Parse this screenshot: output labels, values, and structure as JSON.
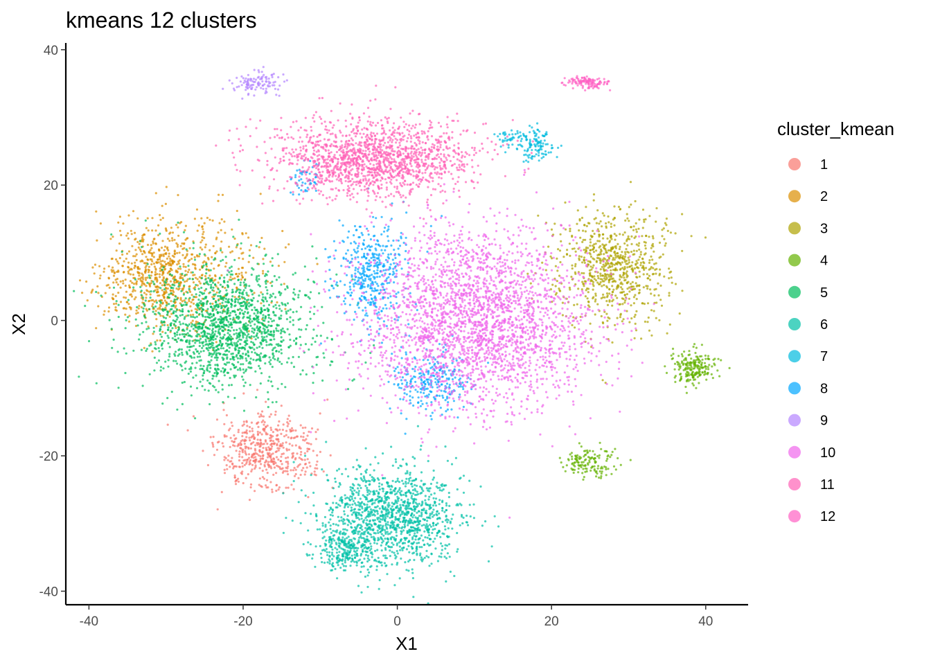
{
  "chart_data": {
    "type": "scatter",
    "title": "kmeans 12 clusters",
    "xlabel": "X1",
    "ylabel": "X2",
    "xlim": [
      -43,
      45.5
    ],
    "ylim": [
      -42,
      41
    ],
    "x_ticks": [
      -40,
      -20,
      0,
      20,
      40
    ],
    "y_ticks": [
      -40,
      -20,
      0,
      20,
      40
    ],
    "grid": false,
    "point_alpha": 0.7,
    "legend": {
      "title": "cluster_kmean",
      "placement": "right"
    },
    "series": [
      {
        "name": "1",
        "color": "#F8766D",
        "clusters": [
          {
            "cx": -17,
            "cy": -19.5,
            "sx": 3.2,
            "sy": 2.8,
            "n": 520
          }
        ]
      },
      {
        "name": "2",
        "color": "#DB8E00",
        "clusters": [
          {
            "cx": -31,
            "cy": 6.5,
            "sx": 3.5,
            "sy": 3.8,
            "n": 600
          },
          {
            "cx": -26,
            "cy": 8,
            "sx": 5.5,
            "sy": 5,
            "n": 300
          }
        ]
      },
      {
        "name": "3",
        "color": "#AEA200",
        "clusters": [
          {
            "cx": 28,
            "cy": 8,
            "sx": 3.6,
            "sy": 4.2,
            "n": 750
          }
        ]
      },
      {
        "name": "4",
        "color": "#64B200",
        "clusters": [
          {
            "cx": 38.5,
            "cy": -7,
            "sx": 1.5,
            "sy": 1.2,
            "n": 200
          },
          {
            "cx": 25,
            "cy": -21,
            "sx": 1.8,
            "sy": 1.1,
            "n": 140
          }
        ]
      },
      {
        "name": "5",
        "color": "#00BD5C",
        "clusters": [
          {
            "cx": -22,
            "cy": -1,
            "sx": 4.8,
            "sy": 4.2,
            "n": 1300
          },
          {
            "cx": -24,
            "cy": 0,
            "sx": 8,
            "sy": 6,
            "n": 250
          }
        ]
      },
      {
        "name": "6",
        "color": "#00C1A7",
        "clusters": [
          {
            "cx": -1,
            "cy": -29,
            "sx": 4.6,
            "sy": 3.7,
            "n": 1300
          },
          {
            "cx": -7,
            "cy": -34,
            "sx": 1.8,
            "sy": 1.5,
            "n": 200
          }
        ]
      },
      {
        "name": "7",
        "color": "#00BADE",
        "clusters": [
          {
            "cx": 18,
            "cy": 26,
            "sx": 1.2,
            "sy": 1.2,
            "n": 120
          },
          {
            "cx": 15,
            "cy": 27,
            "sx": 1.6,
            "sy": 0.6,
            "n": 40
          }
        ]
      },
      {
        "name": "8",
        "color": "#00A6FF",
        "clusters": [
          {
            "cx": -3.5,
            "cy": 7,
            "sx": 2.4,
            "sy": 4,
            "n": 420
          },
          {
            "cx": 4,
            "cy": -9,
            "sx": 2.6,
            "sy": 2.3,
            "n": 260
          },
          {
            "cx": -12,
            "cy": 21,
            "sx": 1,
            "sy": 1.2,
            "n": 50
          }
        ]
      },
      {
        "name": "9",
        "color": "#B385FF",
        "clusters": [
          {
            "cx": -18.5,
            "cy": 35,
            "sx": 1.5,
            "sy": 0.8,
            "n": 110
          }
        ]
      },
      {
        "name": "10",
        "color": "#EF67EB",
        "clusters": [
          {
            "cx": 10,
            "cy": 0,
            "sx": 7.5,
            "sy": 6.5,
            "n": 2800
          }
        ]
      },
      {
        "name": "11",
        "color": "#FF63B6",
        "clusters": [
          {
            "cx": -3,
            "cy": 24,
            "sx": 6.5,
            "sy": 2.8,
            "n": 1600
          }
        ]
      },
      {
        "name": "12",
        "color": "#FF61C3",
        "clusters": [
          {
            "cx": 24.5,
            "cy": 35.2,
            "sx": 1.4,
            "sy": 0.5,
            "n": 120
          }
        ]
      }
    ]
  }
}
